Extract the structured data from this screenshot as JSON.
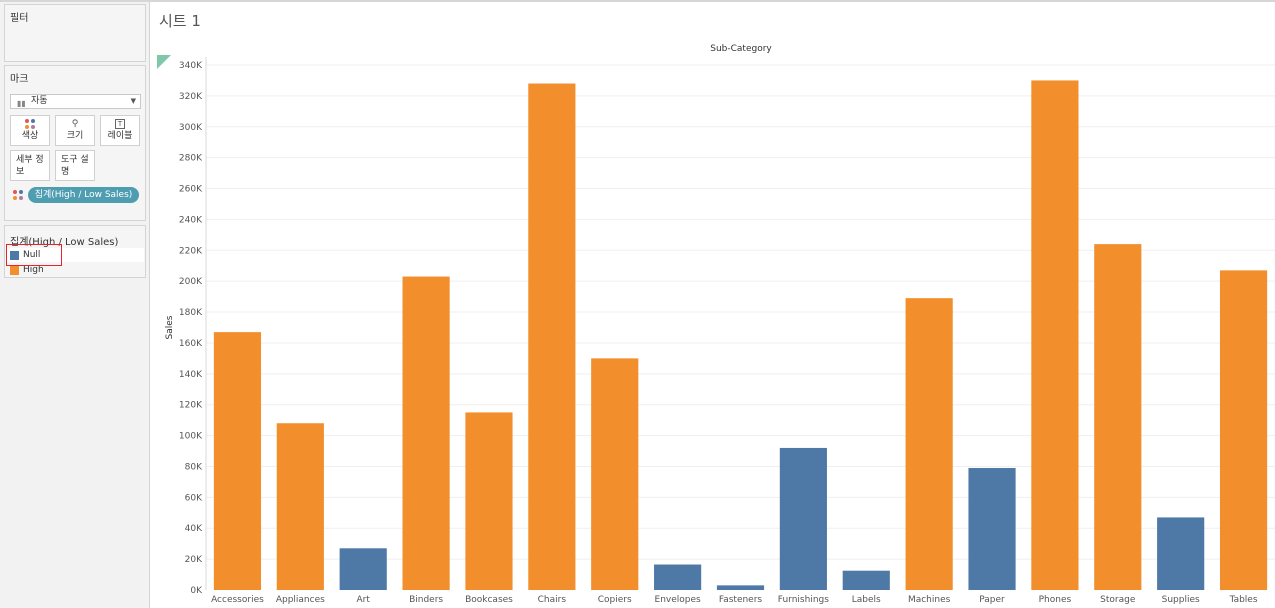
{
  "sidebar": {
    "filters_title": "필터",
    "marks_title": "마크",
    "mark_type": "자동",
    "buttons": {
      "color": "색상",
      "size": "크기",
      "label": "레이블",
      "detail_line1": "세부 정",
      "detail_line2": "보",
      "tooltip_line1": "도구 설",
      "tooltip_line2": "명"
    },
    "color_pill": "집계(High / Low Sales)",
    "legend": {
      "title": "집계(High / Low Sales)",
      "items": [
        {
          "label": "Null",
          "color": "#4e79a7"
        },
        {
          "label": "High",
          "color": "#f28e2b"
        }
      ]
    }
  },
  "sheet_title": "시트 1",
  "chart_data": {
    "type": "bar",
    "column_header": "Sub-Category",
    "ylabel": "Sales",
    "ylim": [
      0,
      340000
    ],
    "yticks": [
      0,
      20000,
      40000,
      60000,
      80000,
      100000,
      120000,
      140000,
      160000,
      180000,
      200000,
      220000,
      240000,
      260000,
      280000,
      300000,
      320000,
      340000
    ],
    "ytick_labels": [
      "0K",
      "20K",
      "40K",
      "60K",
      "80K",
      "100K",
      "120K",
      "140K",
      "160K",
      "180K",
      "200K",
      "220K",
      "240K",
      "260K",
      "280K",
      "300K",
      "320K",
      "340K"
    ],
    "categories": [
      "Accessories",
      "Appliances",
      "Art",
      "Binders",
      "Bookcases",
      "Chairs",
      "Copiers",
      "Envelopes",
      "Fasteners",
      "Furnishings",
      "Labels",
      "Machines",
      "Paper",
      "Phones",
      "Storage",
      "Supplies",
      "Tables"
    ],
    "values": [
      167000,
      108000,
      27000,
      203000,
      115000,
      328000,
      150000,
      16500,
      3000,
      92000,
      12500,
      189000,
      79000,
      330000,
      224000,
      47000,
      207000
    ],
    "groups": [
      "High",
      "High",
      "Null",
      "High",
      "High",
      "High",
      "High",
      "Null",
      "Null",
      "Null",
      "Null",
      "High",
      "Null",
      "High",
      "High",
      "Null",
      "High"
    ],
    "colors": {
      "High": "#f28e2b",
      "Null": "#4e79a7"
    },
    "grid": true
  }
}
